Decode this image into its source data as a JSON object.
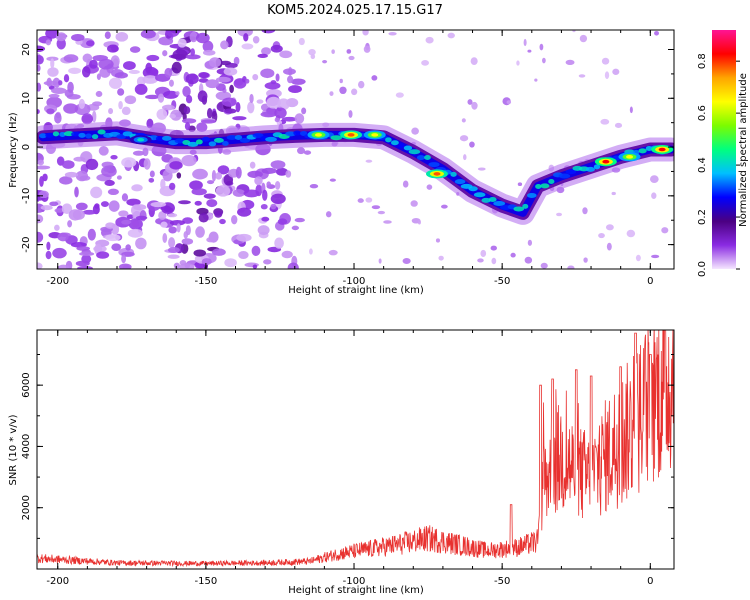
{
  "title": "KOM5.2024.025.17.15.G17",
  "chart_data": [
    {
      "type": "heatmap",
      "xlabel": "Height of straight line (km)",
      "ylabel": "Frequency (Hz)",
      "xlim": [
        -207,
        8
      ],
      "ylim": [
        -25,
        24
      ],
      "xticks": [
        -200,
        -150,
        -100,
        -50,
        0
      ],
      "yticks": [
        -20,
        -10,
        0,
        10,
        20
      ],
      "colorbar": {
        "label": "Normalized spectral amplitude",
        "range": [
          0.0,
          0.92
        ],
        "ticks": [
          0.0,
          0.2,
          0.4,
          0.6,
          0.8
        ],
        "colormap": [
          "#f5e6ff",
          "#8a2be2",
          "#4b0082",
          "#0000ff",
          "#00bfff",
          "#00ff7f",
          "#7cfc00",
          "#ffff00",
          "#ffa500",
          "#ff0000",
          "#ff1493"
        ]
      },
      "ridge": [
        {
          "x": -205,
          "y": 2.0
        },
        {
          "x": -190,
          "y": 2.5
        },
        {
          "x": -180,
          "y": 2.8
        },
        {
          "x": -170,
          "y": 1.8
        },
        {
          "x": -160,
          "y": 1.0
        },
        {
          "x": -150,
          "y": 1.0
        },
        {
          "x": -140,
          "y": 1.5
        },
        {
          "x": -130,
          "y": 2.0
        },
        {
          "x": -120,
          "y": 2.3
        },
        {
          "x": -110,
          "y": 2.5
        },
        {
          "x": -100,
          "y": 2.5
        },
        {
          "x": -90,
          "y": 2.0
        },
        {
          "x": -80,
          "y": -1.0
        },
        {
          "x": -70,
          "y": -4.5
        },
        {
          "x": -60,
          "y": -9.0
        },
        {
          "x": -50,
          "y": -12.0
        },
        {
          "x": -43,
          "y": -13.5
        },
        {
          "x": -38,
          "y": -8.0
        },
        {
          "x": -30,
          "y": -6.0
        },
        {
          "x": -20,
          "y": -4.0
        },
        {
          "x": -10,
          "y": -2.0
        },
        {
          "x": 0,
          "y": -0.5
        },
        {
          "x": 7,
          "y": -0.5
        }
      ],
      "ridge_peaks": [
        {
          "x": -172,
          "y": 1.5,
          "amplitude": 0.45
        },
        {
          "x": -112,
          "y": 2.5,
          "amplitude": 0.7
        },
        {
          "x": -101,
          "y": 2.5,
          "amplitude": 0.85
        },
        {
          "x": -93,
          "y": 2.5,
          "amplitude": 0.7
        },
        {
          "x": -72,
          "y": -5.5,
          "amplitude": 0.85
        },
        {
          "x": -15,
          "y": -3.0,
          "amplitude": 0.9
        },
        {
          "x": -7,
          "y": -2.0,
          "amplitude": 0.7
        },
        {
          "x": 4,
          "y": -0.5,
          "amplitude": 0.9
        }
      ],
      "grid": false
    },
    {
      "type": "line",
      "xlabel": "Height of straight line (km)",
      "ylabel": "SNR (10 * v/v)",
      "xlim": [
        -207,
        8
      ],
      "ylim": [
        0,
        7800
      ],
      "xticks": [
        -200,
        -150,
        -100,
        -50,
        0
      ],
      "yticks": [
        2000,
        4000,
        6000
      ],
      "color": "#e8312f",
      "trend": [
        {
          "x": -207,
          "y": 350
        },
        {
          "x": -180,
          "y": 200
        },
        {
          "x": -150,
          "y": 180
        },
        {
          "x": -130,
          "y": 200
        },
        {
          "x": -115,
          "y": 250
        },
        {
          "x": -105,
          "y": 500
        },
        {
          "x": -95,
          "y": 650
        },
        {
          "x": -85,
          "y": 800
        },
        {
          "x": -75,
          "y": 1000
        },
        {
          "x": -65,
          "y": 800
        },
        {
          "x": -55,
          "y": 600
        },
        {
          "x": -45,
          "y": 700
        },
        {
          "x": -38,
          "y": 900
        },
        {
          "x": -36,
          "y": 2800
        },
        {
          "x": -30,
          "y": 3500
        },
        {
          "x": -25,
          "y": 3000
        },
        {
          "x": -20,
          "y": 2800
        },
        {
          "x": -15,
          "y": 3500
        },
        {
          "x": -10,
          "y": 4000
        },
        {
          "x": -5,
          "y": 4500
        },
        {
          "x": 0,
          "y": 5200
        },
        {
          "x": 5,
          "y": 5800
        },
        {
          "x": 8,
          "y": 6000
        }
      ],
      "spikes": [
        {
          "x": -47,
          "y": 2100
        },
        {
          "x": -37,
          "y": 6000
        },
        {
          "x": -33,
          "y": 6200
        },
        {
          "x": -25,
          "y": 6500
        },
        {
          "x": -20,
          "y": 6300
        },
        {
          "x": -10,
          "y": 6600
        },
        {
          "x": -5,
          "y": 7700
        },
        {
          "x": 0,
          "y": 7000
        }
      ],
      "grid": false
    }
  ]
}
